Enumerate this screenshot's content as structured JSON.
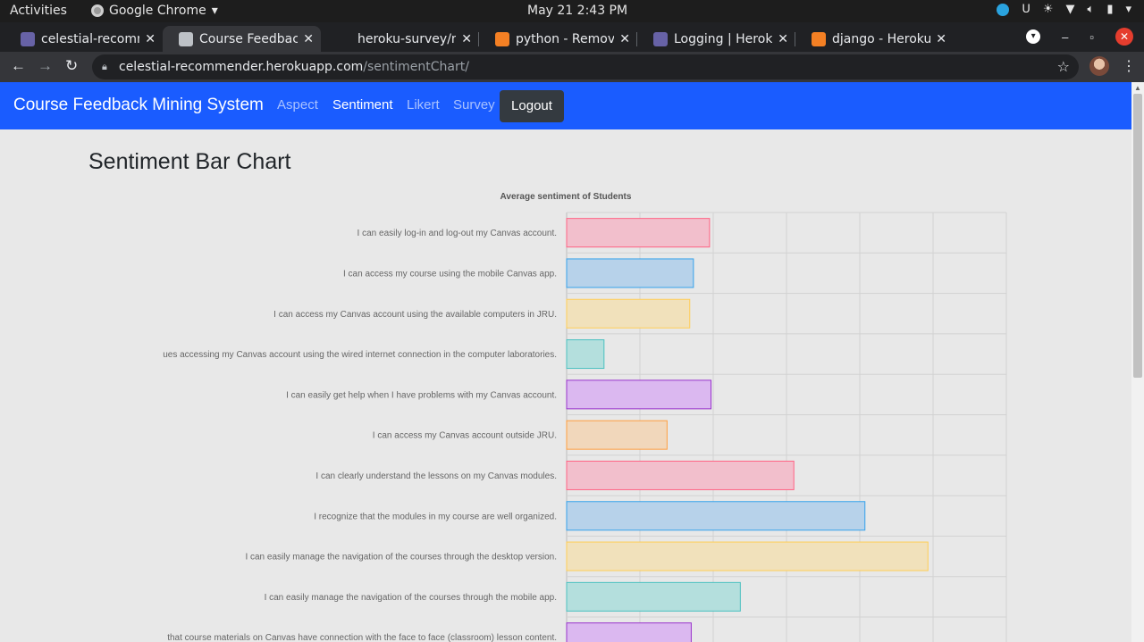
{
  "os": {
    "activities": "Activities",
    "app_name": "Google Chrome",
    "clock": "May 21  2:43 PM"
  },
  "browser": {
    "tabs": [
      {
        "title": "celestial-recomme",
        "favicon": "heroku-icon",
        "color": "#6762a6",
        "active": false
      },
      {
        "title": "Course Feedback",
        "favicon": "globe-icon",
        "color": "#bdc1c6",
        "active": true
      },
      {
        "title": "heroku-survey/nlt",
        "favicon": "github-icon",
        "color": "#202124",
        "active": false
      },
      {
        "title": "python - Remove s",
        "favicon": "stackoverflow-icon",
        "color": "#f48024",
        "active": false
      },
      {
        "title": "Logging | Heroku",
        "favicon": "heroku-icon",
        "color": "#6762a6",
        "active": false
      },
      {
        "title": "django - Heroku s",
        "favicon": "stackoverflow-icon",
        "color": "#f48024",
        "active": false
      }
    ],
    "url_host": "celestial-recommender.herokuapp.com",
    "url_path": "/sentimentChart/"
  },
  "site": {
    "brand": "Course Feedback Mining System",
    "nav": [
      {
        "label": "Aspect",
        "active": false
      },
      {
        "label": "Sentiment",
        "active": true
      },
      {
        "label": "Likert",
        "active": false
      },
      {
        "label": "Survey",
        "active": false
      }
    ],
    "logout": "Logout",
    "page_title": "Sentiment Bar Chart"
  },
  "chart_data": {
    "type": "bar",
    "orientation": "horizontal",
    "title": "Average sentiment of Students",
    "categories": [
      "I can easily log-in and log-out my Canvas account.",
      "I can access my course using the mobile Canvas app.",
      "I can access my Canvas account using the available computers in JRU.",
      "ues accessing my Canvas account using the wired internet connection in the computer laboratories.",
      "I can easily get help when I have problems with my Canvas account.",
      "I can access my Canvas account outside JRU.",
      "I can clearly understand the lessons on my Canvas modules.",
      "I recognize that the modules in my course are well organized.",
      "I can easily manage the navigation of the courses through the desktop version.",
      "I can easily manage the navigation of the courses through the mobile app.",
      "that course materials on Canvas have connection with the face to face (classroom) lesson content."
    ],
    "values": [
      0.195,
      0.173,
      0.168,
      0.051,
      0.197,
      0.137,
      0.31,
      0.407,
      0.493,
      0.237,
      0.17
    ],
    "xlim": [
      0,
      0.6
    ],
    "grid": true,
    "colors": [
      {
        "fill": "#f2bfcc",
        "stroke": "#ff6384"
      },
      {
        "fill": "#b7d2ea",
        "stroke": "#36a2eb"
      },
      {
        "fill": "#f1e1bb",
        "stroke": "#ffce56"
      },
      {
        "fill": "#b4dfdd",
        "stroke": "#4bc0c0"
      },
      {
        "fill": "#dbb8f0",
        "stroke": "#9933cc"
      },
      {
        "fill": "#f1d7bb",
        "stroke": "#ff9f40"
      }
    ]
  }
}
